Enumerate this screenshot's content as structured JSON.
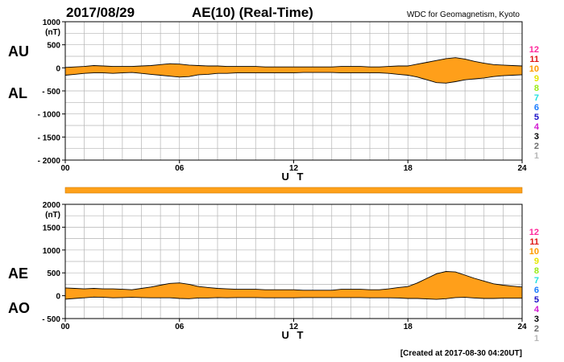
{
  "header": {
    "date": "2017/08/29",
    "title": "AE(10) (Real-Time)",
    "source": "WDC for Geomagnetism, Kyoto"
  },
  "footer": {
    "created": "[Created at 2017-08-30 04:20UT]"
  },
  "colors": {
    "fill": "#ff9f1a",
    "grid": "#b4b4b4",
    "strip": "#ffa11a"
  },
  "station_levels": {
    "labels": [
      "12",
      "11",
      "10",
      "9",
      "8",
      "7",
      "6",
      "5",
      "4",
      "3",
      "2",
      "1"
    ],
    "colors": [
      "#ff2a9c",
      "#e01818",
      "#ff9a00",
      "#e6e600",
      "#9aeb16",
      "#22e0e0",
      "#1a7cff",
      "#1a10c8",
      "#d21ad2",
      "#000000",
      "#6e6e6e",
      "#b8b8b8"
    ]
  },
  "chart_data": [
    {
      "type": "area",
      "id": "au_al",
      "unit": "(nT)",
      "upper_name": "AU",
      "lower_name": "AL",
      "xlabel": "U T",
      "xlim": [
        0,
        24
      ],
      "ylim": [
        -2000,
        1000
      ],
      "xticks": [
        {
          "v": 0,
          "t": "00"
        },
        {
          "v": 6,
          "t": "06"
        },
        {
          "v": 12,
          "t": "12"
        },
        {
          "v": 18,
          "t": "18"
        },
        {
          "v": 24,
          "t": "24"
        }
      ],
      "yticks": [
        {
          "v": 1000,
          "t": "1000"
        },
        {
          "v": 500,
          "t": "500"
        },
        {
          "v": 0,
          "t": "0"
        },
        {
          "v": -500,
          "t": "- 500"
        },
        {
          "v": -1000,
          "t": "- 1000"
        },
        {
          "v": -1500,
          "t": "- 1500"
        },
        {
          "v": -2000,
          "t": "- 2000"
        }
      ],
      "x": [
        0,
        0.5,
        1,
        1.5,
        2,
        2.5,
        3,
        3.5,
        4,
        4.5,
        5,
        5.5,
        6,
        6.5,
        7,
        7.5,
        8,
        8.5,
        9,
        9.5,
        10,
        10.5,
        11,
        11.5,
        12,
        12.5,
        13,
        13.5,
        14,
        14.5,
        15,
        15.5,
        16,
        16.5,
        17,
        17.5,
        18,
        18.5,
        19,
        19.5,
        20,
        20.5,
        21,
        21.5,
        22,
        22.5,
        23,
        23.5,
        24
      ],
      "upper": [
        10,
        20,
        30,
        50,
        40,
        30,
        30,
        30,
        40,
        50,
        70,
        90,
        80,
        60,
        50,
        40,
        40,
        30,
        30,
        30,
        30,
        20,
        20,
        20,
        20,
        20,
        20,
        20,
        20,
        30,
        30,
        30,
        20,
        20,
        30,
        40,
        40,
        80,
        120,
        160,
        200,
        220,
        190,
        140,
        100,
        70,
        60,
        50,
        40
      ],
      "lower": [
        -160,
        -140,
        -120,
        -110,
        -110,
        -120,
        -110,
        -100,
        -120,
        -140,
        -160,
        -180,
        -200,
        -190,
        -150,
        -140,
        -120,
        -120,
        -110,
        -110,
        -110,
        -110,
        -110,
        -110,
        -110,
        -100,
        -100,
        -100,
        -100,
        -110,
        -110,
        -110,
        -110,
        -110,
        -120,
        -140,
        -160,
        -200,
        -260,
        -320,
        -330,
        -300,
        -260,
        -240,
        -220,
        -190,
        -170,
        -160,
        -150
      ]
    },
    {
      "type": "area",
      "id": "ae_ao",
      "unit": "(nT)",
      "upper_name": "AE",
      "lower_name": "AO",
      "xlabel": "U T",
      "xlim": [
        0,
        24
      ],
      "ylim": [
        -500,
        2000
      ],
      "xticks": [
        {
          "v": 0,
          "t": "00"
        },
        {
          "v": 6,
          "t": "06"
        },
        {
          "v": 12,
          "t": "12"
        },
        {
          "v": 18,
          "t": "18"
        },
        {
          "v": 24,
          "t": "24"
        }
      ],
      "yticks": [
        {
          "v": 2000,
          "t": "2000"
        },
        {
          "v": 1500,
          "t": "1500"
        },
        {
          "v": 1000,
          "t": "1000"
        },
        {
          "v": 500,
          "t": "500"
        },
        {
          "v": 0,
          "t": "0"
        },
        {
          "v": -500,
          "t": "- 500"
        }
      ],
      "x": [
        0,
        0.5,
        1,
        1.5,
        2,
        2.5,
        3,
        3.5,
        4,
        4.5,
        5,
        5.5,
        6,
        6.5,
        7,
        7.5,
        8,
        8.5,
        9,
        9.5,
        10,
        10.5,
        11,
        11.5,
        12,
        12.5,
        13,
        13.5,
        14,
        14.5,
        15,
        15.5,
        16,
        16.5,
        17,
        17.5,
        18,
        18.5,
        19,
        19.5,
        20,
        20.5,
        21,
        21.5,
        22,
        22.5,
        23,
        23.5,
        24
      ],
      "upper": [
        170,
        160,
        150,
        160,
        150,
        150,
        140,
        130,
        160,
        190,
        230,
        270,
        280,
        250,
        200,
        180,
        160,
        150,
        140,
        140,
        140,
        130,
        130,
        130,
        130,
        120,
        120,
        120,
        120,
        140,
        140,
        140,
        130,
        130,
        150,
        180,
        200,
        280,
        380,
        480,
        530,
        520,
        450,
        380,
        320,
        260,
        230,
        210,
        190
      ],
      "lower": [
        -75,
        -60,
        -45,
        -30,
        -35,
        -45,
        -40,
        -35,
        -40,
        -45,
        -45,
        -45,
        -60,
        -65,
        -50,
        -50,
        -40,
        -45,
        -40,
        -40,
        -40,
        -45,
        -45,
        -45,
        -45,
        -40,
        -40,
        -40,
        -40,
        -40,
        -40,
        -40,
        -45,
        -45,
        -45,
        -50,
        -60,
        -60,
        -70,
        -80,
        -65,
        -40,
        -35,
        -50,
        -60,
        -60,
        -55,
        -55,
        -55
      ]
    }
  ]
}
